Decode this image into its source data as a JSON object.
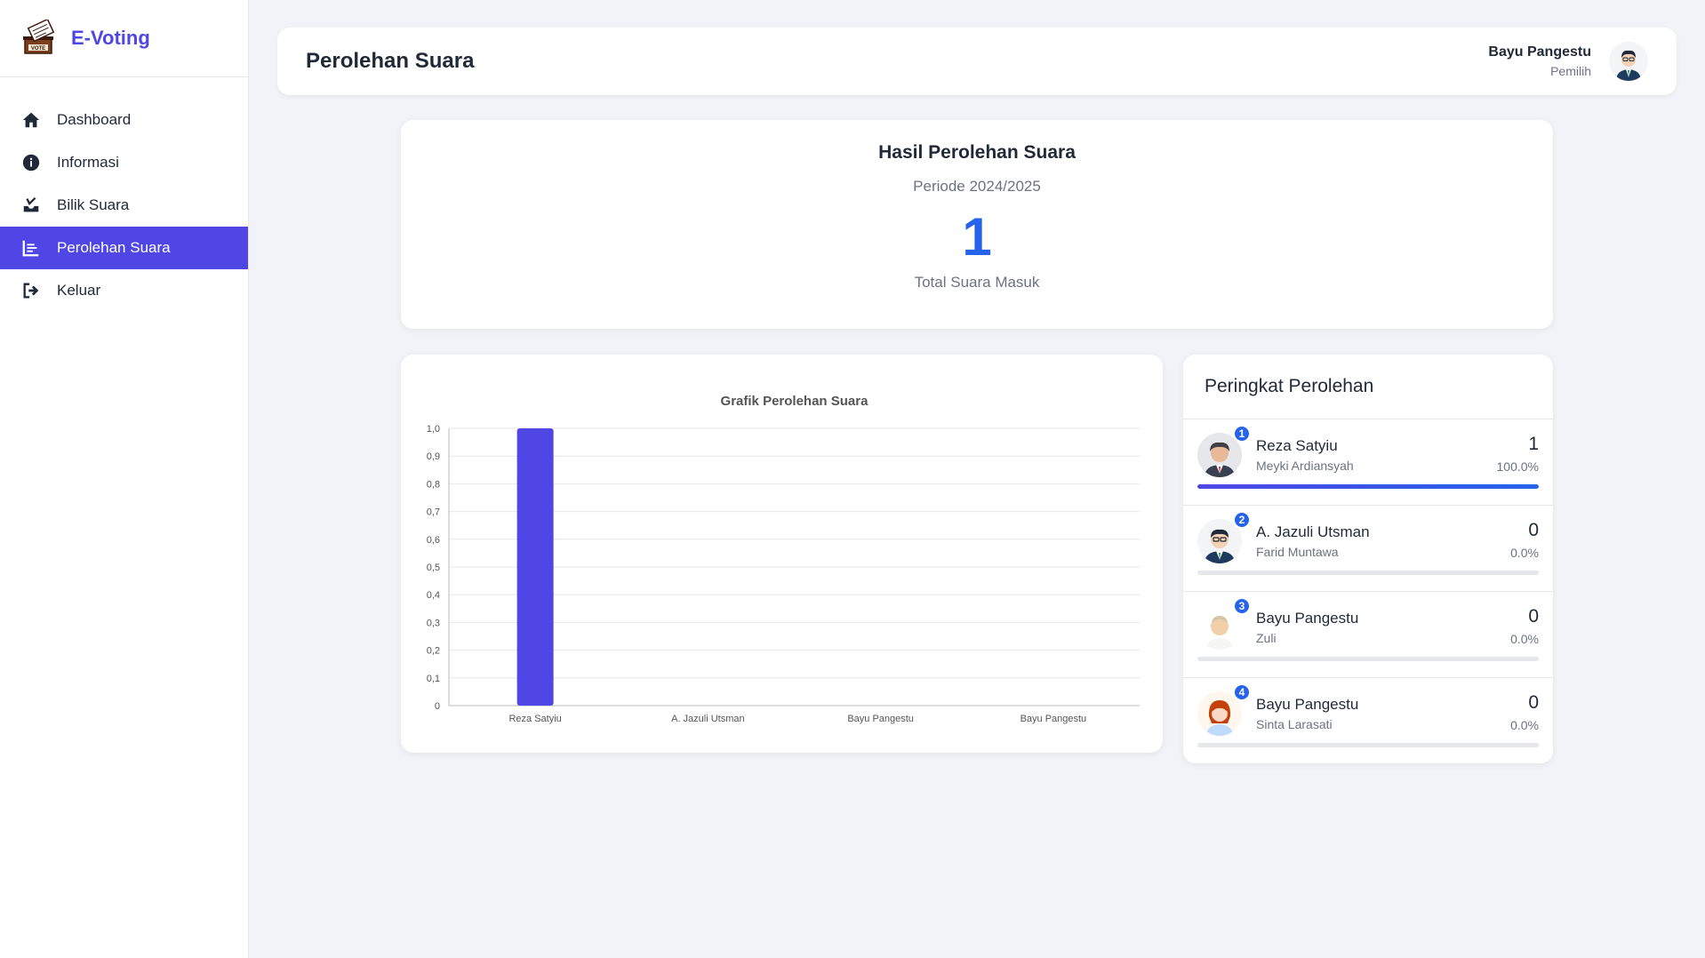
{
  "brand": {
    "name": "E-Voting",
    "logo_icon": "ballot-box-vote-icon"
  },
  "nav": {
    "items": [
      {
        "label": "Dashboard",
        "icon": "home-icon"
      },
      {
        "label": "Informasi",
        "icon": "info-icon"
      },
      {
        "label": "Bilik Suara",
        "icon": "inbox-icon"
      },
      {
        "label": "Perolehan Suara",
        "icon": "chart-list-icon",
        "active": true
      },
      {
        "label": "Keluar",
        "icon": "logout-icon"
      }
    ]
  },
  "header": {
    "title": "Perolehan Suara",
    "user_name": "Bayu Pangestu",
    "user_role": "Pemilih"
  },
  "summary": {
    "title": "Hasil Perolehan Suara",
    "period": "Periode 2024/2025",
    "total": "1",
    "caption": "Total Suara Masuk"
  },
  "colors": {
    "accent": "#4f46e5",
    "blue": "#2563eb"
  },
  "chart_data": {
    "type": "bar",
    "title": "Grafik Perolehan Suara",
    "categories": [
      "Reza Satyiu",
      "A. Jazuli Utsman",
      "Bayu Pangestu",
      "Bayu Pangestu"
    ],
    "values": [
      1,
      0,
      0,
      0
    ],
    "ylim": [
      0,
      1
    ],
    "yticks": [
      "0",
      "0,1",
      "0,2",
      "0,3",
      "0,4",
      "0,5",
      "0,6",
      "0,7",
      "0,8",
      "0,9",
      "1,0"
    ],
    "grid": true,
    "color": "#4f46e5",
    "xlabel": "",
    "ylabel": ""
  },
  "ranking": {
    "title": "Peringkat Perolehan",
    "items": [
      {
        "rank": "1",
        "name": "Reza Satyiu",
        "running_mate": "Meyki Ardiansyah",
        "votes": "1",
        "percent": "100.0%",
        "fraction": 1.0,
        "avatar": "man-dark-hair-avatar"
      },
      {
        "rank": "2",
        "name": "A. Jazuli Utsman",
        "running_mate": "Farid Muntawa",
        "votes": "0",
        "percent": "0.0%",
        "fraction": 0.0,
        "avatar": "man-glasses-avatar"
      },
      {
        "rank": "3",
        "name": "Bayu Pangestu",
        "running_mate": "Zuli",
        "votes": "0",
        "percent": "0.0%",
        "fraction": 0.0,
        "avatar": "bald-man-avatar"
      },
      {
        "rank": "4",
        "name": "Bayu Pangestu",
        "running_mate": "Sinta Larasati",
        "votes": "0",
        "percent": "0.0%",
        "fraction": 0.0,
        "avatar": "woman-red-hair-avatar"
      }
    ]
  }
}
